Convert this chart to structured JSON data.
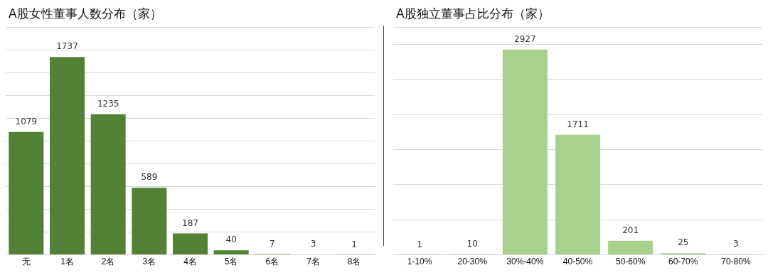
{
  "chart_data": [
    {
      "type": "bar",
      "title": "A股女性董事人数分布（家）",
      "categories": [
        "无",
        "1名",
        "2名",
        "3名",
        "4名",
        "5名",
        "6名",
        "7名",
        "8名"
      ],
      "values": [
        1079,
        1737,
        1235,
        589,
        187,
        40,
        7,
        3,
        1
      ],
      "color": "#538135",
      "ylim": [
        0,
        2000
      ],
      "yticks": [
        {
          "value": 0,
          "label": null
        },
        {
          "value": 200,
          "label": null
        },
        {
          "value": 400,
          "label": null
        },
        {
          "value": 600,
          "label": null
        },
        {
          "value": 800,
          "label": null
        },
        {
          "value": 1000,
          "label": null
        },
        {
          "value": 1200,
          "label": null
        },
        {
          "value": 1400,
          "label": null
        },
        {
          "value": 1600,
          "label": null
        },
        {
          "value": 1800,
          "label": null
        },
        {
          "value": 2000,
          "label": null
        }
      ],
      "grid": "y",
      "tick_labels": "x",
      "data_labels": true
    },
    {
      "type": "bar",
      "title": "A股独立董事占比分布（家）",
      "categories": [
        "1-10%",
        "20-30%",
        "30%-40%",
        "40-50%",
        "50-60%",
        "60-70%",
        "70-80%"
      ],
      "values": [
        1,
        10,
        2927,
        1711,
        201,
        25,
        3
      ],
      "color": "#a9d18e",
      "ylim": [
        0,
        3250
      ],
      "yticks": [
        {
          "value": 0,
          "label": null
        },
        {
          "value": 500,
          "label": null
        },
        {
          "value": 1000,
          "label": null
        },
        {
          "value": 1500,
          "label": null
        },
        {
          "value": 2000,
          "label": null
        },
        {
          "value": 2500,
          "label": null
        },
        {
          "value": 3000,
          "label": null
        },
        {
          "value": 3250,
          "label": null
        }
      ],
      "grid": "y",
      "tick_labels": "x",
      "data_labels": true
    }
  ]
}
